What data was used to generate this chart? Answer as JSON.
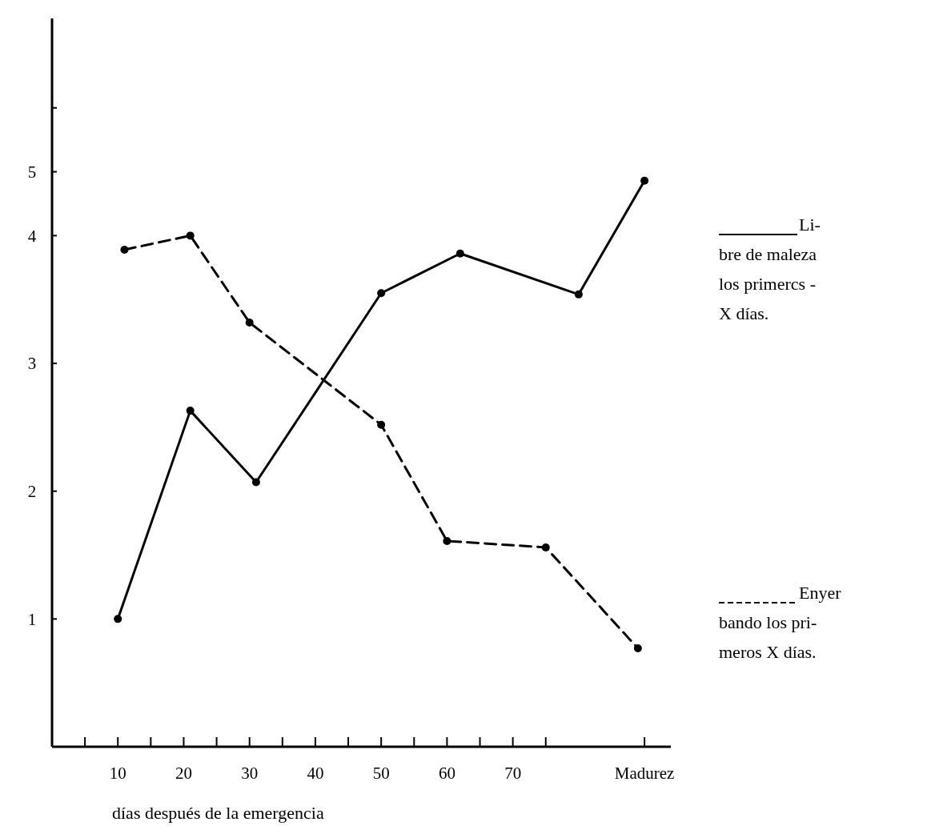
{
  "chart_data": {
    "type": "line",
    "xlabel": "días después de la emergencia",
    "xlim": [
      0,
      94
    ],
    "ylim": [
      0,
      5.7
    ],
    "xticks": [
      {
        "value": 5,
        "label": null
      },
      10,
      {
        "value": 15,
        "label": null
      },
      20,
      {
        "value": 25,
        "label": null
      },
      30,
      {
        "value": 35,
        "label": null
      },
      40,
      {
        "value": 45,
        "label": null
      },
      50,
      {
        "value": 55,
        "label": null
      },
      60,
      {
        "value": 65,
        "label": null
      },
      70,
      {
        "value": 75,
        "label": null
      },
      {
        "value": 90,
        "label": "Madurez"
      }
    ],
    "yticks": [
      1,
      2,
      3,
      4,
      {
        "value": 4.5,
        "label": "5"
      },
      {
        "value": 5,
        "label": null
      }
    ],
    "legend": "right",
    "marker": "circle",
    "grid": false,
    "series": [
      {
        "name": "Li- bre de maleza los primercs - X días.",
        "color": "#000000",
        "line_style": "solid",
        "x": [
          10,
          21,
          31,
          50,
          62,
          80,
          90
        ],
        "values": [
          1.0,
          2.63,
          2.07,
          3.55,
          3.86,
          3.54,
          4.43
        ]
      },
      {
        "name": "Enyer bando los pri- meros X días.",
        "color": "#000000",
        "line_style": "dashed",
        "x": [
          11,
          21,
          30,
          50,
          60,
          75,
          89
        ],
        "values": [
          3.89,
          4.0,
          3.32,
          2.52,
          1.61,
          1.56,
          0.77
        ]
      }
    ]
  }
}
